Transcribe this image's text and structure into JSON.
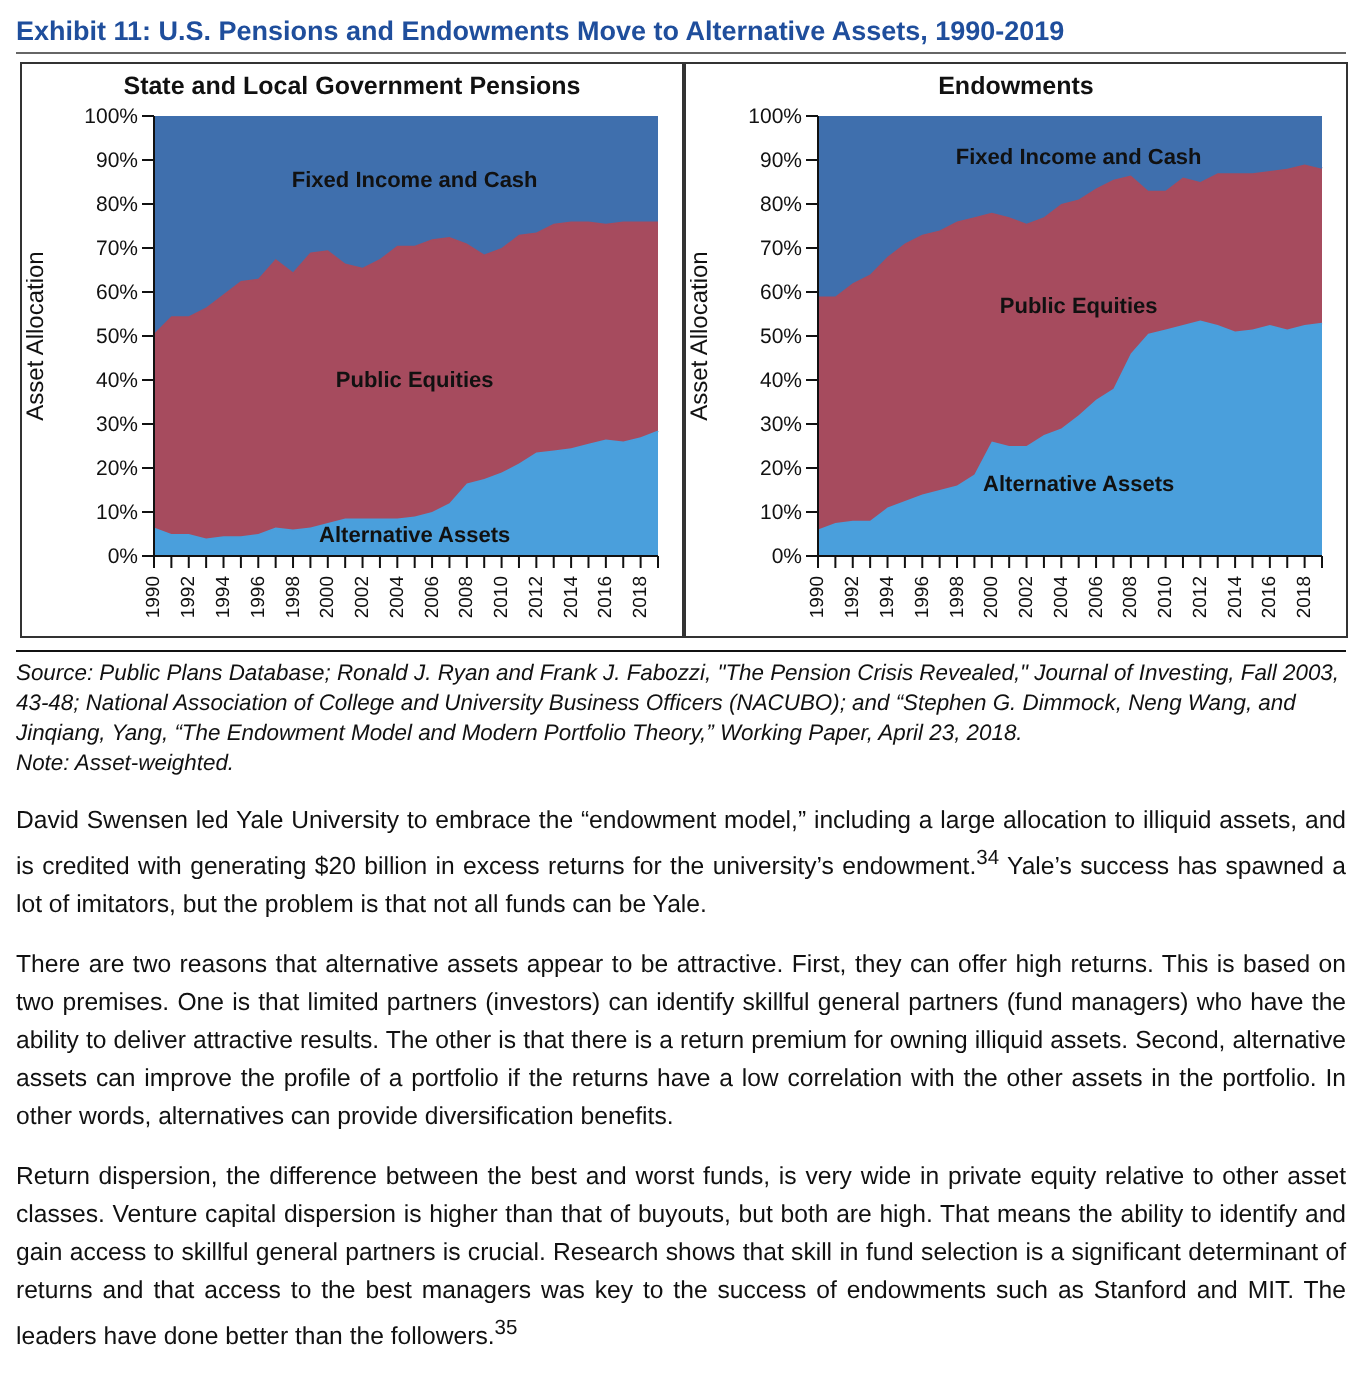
{
  "chart_data": [
    {
      "type": "area",
      "title": "Exhibit 11: U.S. Pensions and Endowments Move to Alternative Assets, 1990-2019",
      "subtitle": "State and Local Government Pensions",
      "ylabel": "Asset Allocation",
      "stacked": true,
      "categories": [
        "1990",
        null,
        "1992",
        null,
        "1994",
        null,
        "1996",
        null,
        "1998",
        null,
        "2000",
        null,
        "2002",
        null,
        "2004",
        null,
        "2006",
        null,
        "2008",
        null,
        "2010",
        null,
        "2012",
        null,
        "2014",
        null,
        "2016",
        null,
        "2018",
        null
      ],
      "ylim": [
        0,
        100
      ],
      "yticks": [
        {
          "value": 0,
          "label": "0%"
        },
        {
          "value": 10,
          "label": "10%"
        },
        {
          "value": 20,
          "label": "20%"
        },
        {
          "value": 30,
          "label": "30%"
        },
        {
          "value": 40,
          "label": "40%"
        },
        {
          "value": 50,
          "label": "50%"
        },
        {
          "value": 60,
          "label": "60%"
        },
        {
          "value": 70,
          "label": "70%"
        },
        {
          "value": 80,
          "label": "80%"
        },
        {
          "value": 90,
          "label": "90%"
        },
        {
          "value": 100,
          "label": "100%"
        }
      ],
      "series": [
        {
          "name": "Alternative Assets",
          "color": "#4a9fdc",
          "values": [
            6.5,
            5,
            5,
            4,
            4.5,
            4.5,
            5,
            6.5,
            6,
            6.5,
            7.5,
            8.5,
            8.5,
            8.5,
            8.5,
            9,
            10,
            12,
            16.5,
            17.5,
            19,
            21,
            23.5,
            24,
            24.5,
            25.5,
            26.5,
            26,
            27,
            28.5
          ]
        },
        {
          "name": "Public Equities",
          "color": "#a64b5e",
          "values": [
            44,
            49.5,
            49.5,
            52.5,
            55,
            58,
            58,
            61,
            58.5,
            62.5,
            62,
            58,
            57,
            59,
            62,
            61.5,
            62,
            60.5,
            54.5,
            51,
            51,
            52,
            50,
            51.5,
            51.5,
            50.5,
            49,
            50,
            49,
            47.5
          ]
        },
        {
          "name": "Fixed Income and Cash",
          "color": "#3f6fad",
          "values": [
            49.5,
            45.5,
            45.5,
            43.5,
            40.5,
            37.5,
            37,
            32.5,
            35.5,
            31,
            30.5,
            33.5,
            34.5,
            32.5,
            29.5,
            29.5,
            28,
            27.5,
            29,
            31.5,
            30,
            27,
            26.5,
            24.5,
            24,
            24,
            24.5,
            24,
            24,
            24
          ]
        }
      ],
      "annotations": [
        "Source: Public Plans Database; Ronald J. Ryan and Frank J. Fabozzi, \"The Pension Crisis Revealed,\" Journal of Investing, Fall 2003, 43-48; National Association of College and University Business Officers (NACUBO); and “Stephen G. Dimmock, Neng Wang, and Jinqiang, Yang, “The Endowment Model and Modern Portfolio Theory,” Working Paper, April 23, 2018.",
        "Note: Asset-weighted.",
        "David Swensen led Yale University to embrace the “endowment model,” including a large allocation to illiquid assets, and is credited with generating $20 billion in excess returns for the university’s endowment.$^{34}$ Yale’s success has spawned a lot of imitators, but the problem is that not all funds can be Yale.",
        "There are two reasons that alternative assets appear to be attractive. First, they can offer high returns. This is based on two premises. One is that limited partners (investors) can identify skillful general partners (fund managers) who have the ability to deliver attractive results. The other is that there is a return premium for owning illiquid assets. Second, alternative assets can improve the profile of a portfolio if the returns have a low correlation with the other assets in the portfolio. In other words, alternatives can provide diversification benefits.",
        "Return dispersion, the difference between the best and worst funds, is very wide in private equity relative to other asset classes. Venture capital dispersion is higher than that of buyouts, but both are high. That means the ability to identify and gain access to skillful general partners is crucial. Research shows that skill in fund selection is a significant determinant of returns and that access to the best managers was key to the success of endowments such as Stanford and MIT. The leaders have done better than the followers.$^{35}$"
      ]
    },
    {
      "type": "area",
      "subtitle": "Endowments",
      "ylabel": "Asset Allocation",
      "stacked": true,
      "categories": [
        "1990",
        null,
        "1992",
        null,
        "1994",
        null,
        "1996",
        null,
        "1998",
        null,
        "2000",
        null,
        "2002",
        null,
        "2004",
        null,
        "2006",
        null,
        "2008",
        null,
        "2010",
        null,
        "2012",
        null,
        "2014",
        null,
        "2016",
        null,
        "2018",
        null
      ],
      "ylim": [
        0,
        100
      ],
      "yticks": [
        {
          "value": 0,
          "label": "0%"
        },
        {
          "value": 10,
          "label": "10%"
        },
        {
          "value": 20,
          "label": "20%"
        },
        {
          "value": 30,
          "label": "30%"
        },
        {
          "value": 40,
          "label": "40%"
        },
        {
          "value": 50,
          "label": "50%"
        },
        {
          "value": 60,
          "label": "60%"
        },
        {
          "value": 70,
          "label": "70%"
        },
        {
          "value": 80,
          "label": "80%"
        },
        {
          "value": 90,
          "label": "90%"
        },
        {
          "value": 100,
          "label": "100%"
        }
      ],
      "series": [
        {
          "name": "Alternative Assets",
          "color": "#4a9fdc",
          "values": [
            6,
            7.5,
            8,
            8,
            11,
            12.5,
            14,
            15,
            16,
            18.5,
            26,
            25,
            25,
            27.5,
            29,
            32,
            35.5,
            38,
            46,
            50.5,
            51.5,
            52.5,
            53.5,
            52.5,
            51,
            51.5,
            52.5,
            51.5,
            52.5,
            53
          ]
        },
        {
          "name": "Public Equities",
          "color": "#a64b5e",
          "values": [
            53,
            51.5,
            54,
            56,
            57,
            58.5,
            59,
            59,
            60,
            58.5,
            52,
            52,
            50.5,
            49.5,
            51,
            49,
            48,
            47.5,
            40.5,
            32.5,
            31.5,
            33.5,
            31.5,
            34.5,
            36,
            35.5,
            35,
            36.5,
            36.5,
            35
          ]
        },
        {
          "name": "Fixed Income and Cash",
          "color": "#3f6fad",
          "values": [
            41,
            41,
            38,
            36,
            32,
            29,
            27,
            26,
            24,
            23,
            22,
            23,
            24.5,
            23,
            20,
            19,
            16.5,
            14.5,
            13.5,
            17,
            17,
            14,
            15,
            13,
            13,
            13,
            12.5,
            12,
            11,
            12
          ]
        }
      ]
    }
  ]
}
